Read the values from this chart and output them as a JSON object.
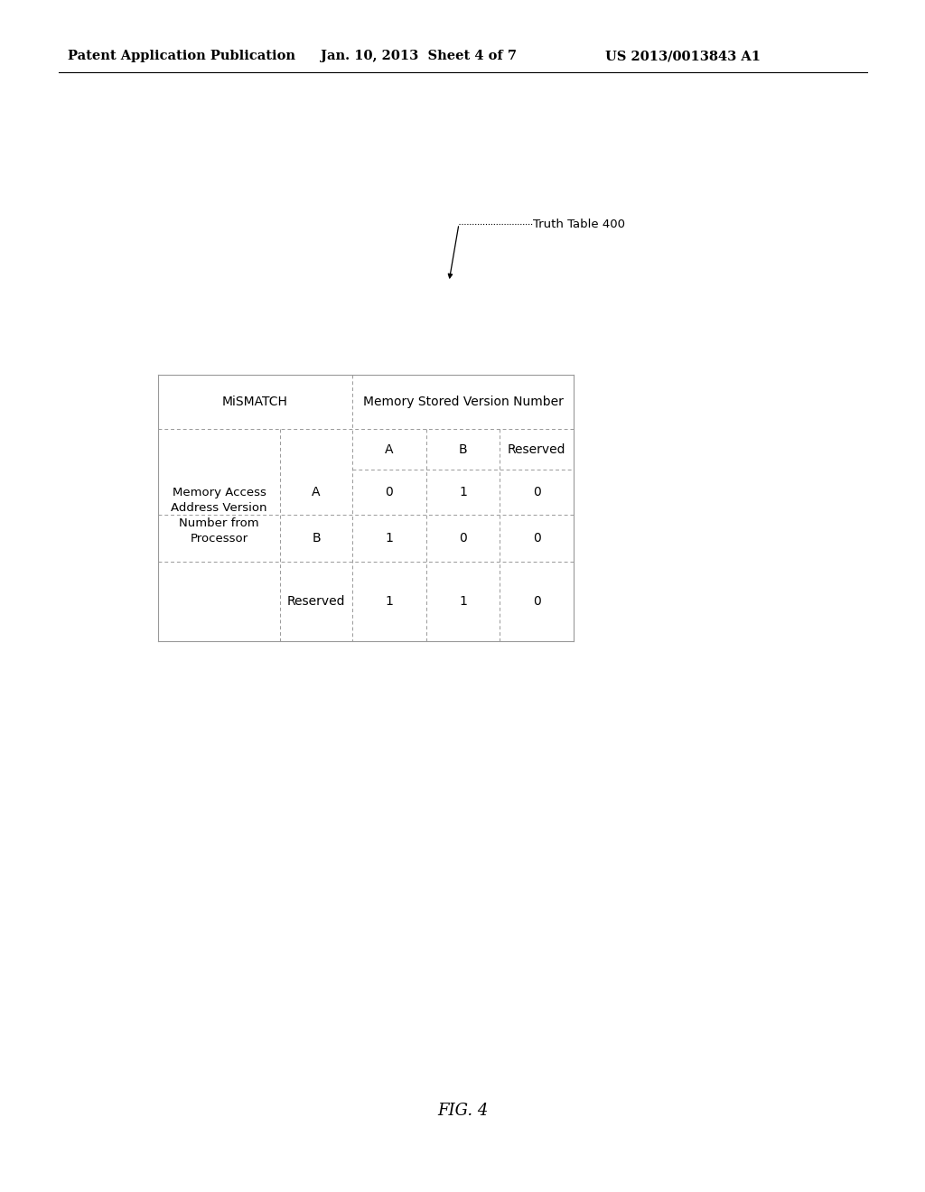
{
  "bg_color": "#ffffff",
  "header_line1": "Patent Application Publication",
  "header_date": "Jan. 10, 2013  Sheet 4 of 7",
  "header_patent": "US 2013/0013843 A1",
  "truth_table_label": "Truth Table 400",
  "fig_label": "FIG. 4",
  "mismatch_label": "MiSMATCH",
  "memory_stored_label": "Memory Stored Version Number",
  "col_headers": [
    "A",
    "B",
    "Reserved"
  ],
  "row_label_group": "Memory Access\nAddress Version\nNumber from\nProcessor",
  "row_headers": [
    "A",
    "B",
    "Reserved"
  ],
  "table_data": [
    [
      "0",
      "1",
      "0"
    ],
    [
      "1",
      "0",
      "0"
    ],
    [
      "1",
      "1",
      "0"
    ]
  ],
  "font_size_header": 10.5,
  "font_size_table": 10,
  "font_size_fig": 13,
  "font_size_patent": 10.5
}
